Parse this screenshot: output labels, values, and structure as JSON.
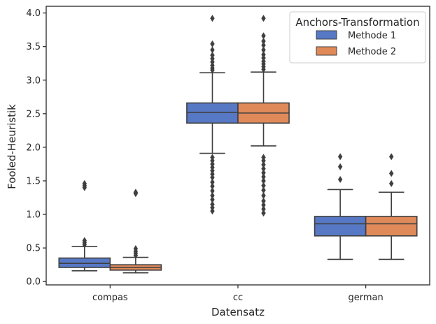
{
  "chart_data": {
    "type": "box",
    "xlabel": "Datensatz",
    "ylabel": "Fooled-Heuristik",
    "ylim": [
      -0.05,
      4.1
    ],
    "yticks": [
      "0.0",
      "0.5",
      "1.0",
      "1.5",
      "2.0",
      "2.5",
      "3.0",
      "3.5",
      "4.0"
    ],
    "categories": [
      "compas",
      "cc",
      "german"
    ],
    "grid": false,
    "legend": {
      "title": "Anchors-Transformation",
      "placement": "top-right"
    },
    "series": [
      {
        "name": "Methode 1",
        "color": "#4c72b0",
        "fill": "#5778c4",
        "boxes": [
          {
            "whislo": 0.16,
            "q1": 0.21,
            "med": 0.27,
            "q3": 0.35,
            "whishi": 0.52,
            "fliers": [
              0.55,
              0.58,
              0.61,
              1.4,
              1.43,
              1.46
            ]
          },
          {
            "whislo": 1.91,
            "q1": 2.36,
            "med": 2.52,
            "q3": 2.66,
            "whishi": 3.11,
            "fliers": [
              1.05,
              1.1,
              1.15,
              1.22,
              1.28,
              1.35,
              1.42,
              1.48,
              1.55,
              1.6,
              1.65,
              1.7,
              1.75,
              1.8,
              1.85,
              3.15,
              3.18,
              3.22,
              3.27,
              3.32,
              3.37,
              3.45,
              3.54,
              3.92
            ]
          },
          {
            "whislo": 0.33,
            "q1": 0.68,
            "med": 0.86,
            "q3": 0.97,
            "whishi": 1.37,
            "fliers": [
              1.52,
              1.71,
              1.86
            ]
          }
        ]
      },
      {
        "name": "Methode 2",
        "color": "#dd8452",
        "fill": "#e08a5a",
        "boxes": [
          {
            "whislo": 0.13,
            "q1": 0.17,
            "med": 0.21,
            "q3": 0.25,
            "whishi": 0.36,
            "fliers": [
              0.39,
              0.42,
              0.45,
              0.49,
              1.31,
              1.33
            ]
          },
          {
            "whislo": 2.02,
            "q1": 2.36,
            "med": 2.51,
            "q3": 2.66,
            "whishi": 3.12,
            "fliers": [
              1.02,
              1.08,
              1.14,
              1.2,
              1.28,
              1.36,
              1.43,
              1.5,
              1.56,
              1.62,
              1.68,
              1.74,
              1.8,
              1.85,
              3.16,
              3.2,
              3.24,
              3.28,
              3.33,
              3.38,
              3.45,
              3.52,
              3.58,
              3.66,
              3.92
            ]
          },
          {
            "whislo": 0.33,
            "q1": 0.68,
            "med": 0.86,
            "q3": 0.97,
            "whishi": 1.33,
            "fliers": [
              1.46,
              1.61,
              1.86
            ]
          }
        ]
      }
    ]
  }
}
